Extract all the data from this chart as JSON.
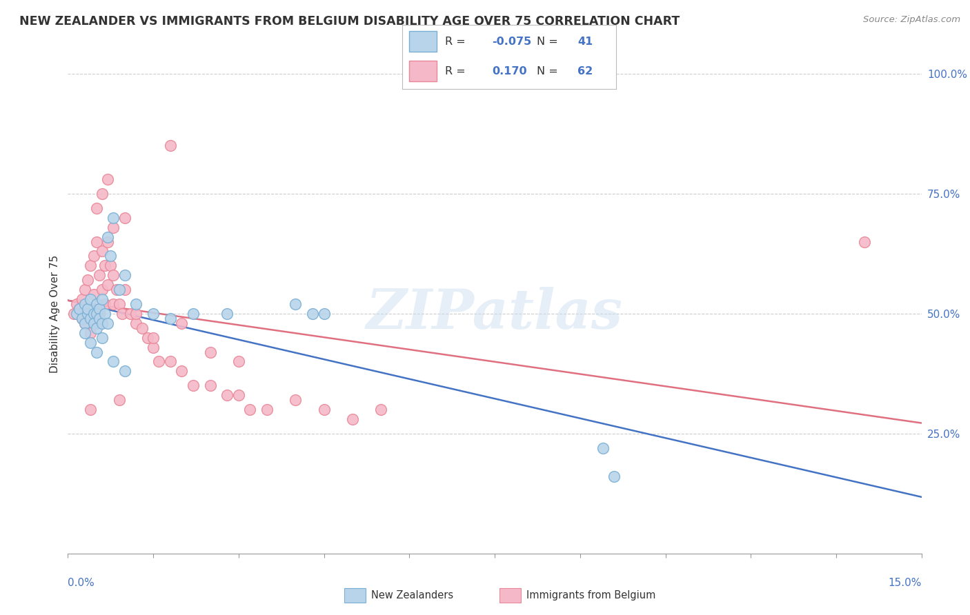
{
  "title": "NEW ZEALANDER VS IMMIGRANTS FROM BELGIUM DISABILITY AGE OVER 75 CORRELATION CHART",
  "source": "Source: ZipAtlas.com",
  "ylabel": "Disability Age Over 75",
  "xmin": 0.0,
  "xmax": 15.0,
  "ymin": 0.0,
  "ymax": 100.0,
  "yticks": [
    25.0,
    50.0,
    75.0,
    100.0
  ],
  "ytick_labels": [
    "25.0%",
    "50.0%",
    "75.0%",
    "100.0%"
  ],
  "legend_R1": "-0.075",
  "legend_N1": "41",
  "legend_R2": "0.170",
  "legend_N2": "62",
  "color_nz_fill": "#b8d4ea",
  "color_nz_edge": "#7aafd4",
  "color_be_fill": "#f5b8c8",
  "color_be_edge": "#e88898",
  "color_nz_line": "#4472c4",
  "color_be_line": "#e07080",
  "watermark": "ZIPatlas",
  "nz_x": [
    0.15,
    0.2,
    0.25,
    0.3,
    0.3,
    0.35,
    0.35,
    0.4,
    0.4,
    0.45,
    0.45,
    0.5,
    0.5,
    0.5,
    0.55,
    0.55,
    0.6,
    0.6,
    0.65,
    0.7,
    0.75,
    0.8,
    0.9,
    1.0,
    1.2,
    1.5,
    1.8,
    2.2,
    2.8,
    4.0,
    4.3,
    4.5,
    9.4,
    9.6,
    0.3,
    0.4,
    0.5,
    0.6,
    0.7,
    0.8,
    1.0
  ],
  "nz_y": [
    50,
    51,
    49,
    52,
    48,
    50,
    51,
    53,
    49,
    50,
    48,
    52,
    50,
    47,
    51,
    49,
    53,
    48,
    50,
    66,
    62,
    70,
    55,
    58,
    52,
    50,
    49,
    50,
    50,
    52,
    50,
    50,
    22,
    16,
    46,
    44,
    42,
    45,
    48,
    40,
    38
  ],
  "be_x": [
    0.1,
    0.15,
    0.2,
    0.25,
    0.25,
    0.3,
    0.3,
    0.35,
    0.35,
    0.4,
    0.4,
    0.45,
    0.45,
    0.5,
    0.5,
    0.55,
    0.55,
    0.6,
    0.6,
    0.65,
    0.65,
    0.7,
    0.7,
    0.75,
    0.8,
    0.8,
    0.85,
    0.9,
    0.95,
    1.0,
    1.1,
    1.2,
    1.3,
    1.4,
    1.5,
    1.6,
    1.8,
    2.0,
    2.2,
    2.5,
    2.8,
    3.0,
    3.2,
    3.5,
    4.0,
    4.5,
    5.0,
    5.5,
    1.0,
    0.5,
    0.8,
    0.6,
    0.7,
    1.2,
    2.0,
    1.5,
    2.5,
    3.0,
    1.8,
    14.0,
    0.4,
    0.9
  ],
  "be_y": [
    50,
    52,
    51,
    53,
    49,
    55,
    48,
    57,
    50,
    60,
    46,
    62,
    54,
    65,
    48,
    58,
    50,
    63,
    55,
    60,
    52,
    65,
    56,
    60,
    58,
    52,
    55,
    52,
    50,
    55,
    50,
    48,
    47,
    45,
    43,
    40,
    40,
    38,
    35,
    35,
    33,
    33,
    30,
    30,
    32,
    30,
    28,
    30,
    70,
    72,
    68,
    75,
    78,
    50,
    48,
    45,
    42,
    40,
    85,
    65,
    30,
    32
  ]
}
